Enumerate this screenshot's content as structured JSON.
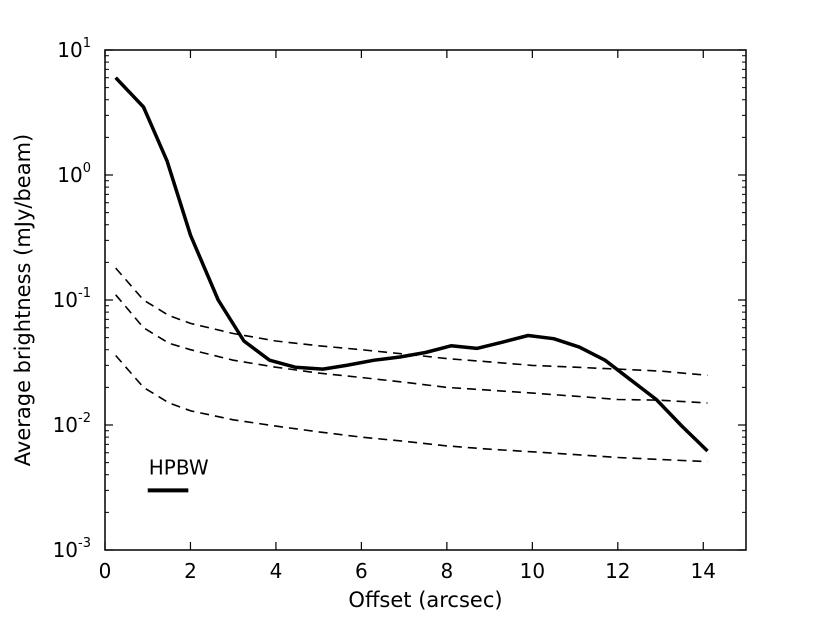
{
  "chart_data": {
    "type": "line",
    "title": "",
    "xlabel": "Offset (arcsec)",
    "ylabel": "Average brightness (mJy/beam)",
    "x_scale": "linear",
    "y_scale": "log",
    "xlim": [
      0,
      15
    ],
    "ylim": [
      0.001,
      10
    ],
    "x_ticks": [
      0,
      2,
      4,
      6,
      8,
      10,
      12,
      14
    ],
    "y_ticks": [
      {
        "value": 0.001,
        "base": "10",
        "exp": "-3"
      },
      {
        "value": 0.01,
        "base": "10",
        "exp": "-2"
      },
      {
        "value": 0.1,
        "base": "10",
        "exp": "-1"
      },
      {
        "value": 1,
        "base": "10",
        "exp": "0"
      },
      {
        "value": 10,
        "base": "10",
        "exp": "1"
      }
    ],
    "grid": false,
    "series": [
      {
        "style": "solid",
        "x": [
          0.25,
          0.9,
          1.45,
          2.0,
          2.65,
          3.25,
          3.85,
          4.45,
          5.1,
          5.65,
          6.3,
          6.9,
          7.5,
          8.1,
          8.7,
          9.3,
          9.9,
          10.5,
          11.1,
          11.7,
          12.3,
          12.9,
          13.5,
          14.1
        ],
        "y": [
          6.0,
          3.5,
          1.3,
          0.33,
          0.1,
          0.047,
          0.033,
          0.029,
          0.028,
          0.03,
          0.033,
          0.035,
          0.038,
          0.043,
          0.041,
          0.046,
          0.052,
          0.049,
          0.042,
          0.033,
          0.023,
          0.016,
          0.0098,
          0.0062
        ]
      },
      {
        "style": "dashed",
        "x": [
          0.25,
          0.9,
          1.5,
          2.0,
          3.0,
          4.0,
          5.0,
          6.0,
          7.0,
          8.0,
          9.0,
          10.0,
          11.0,
          12.0,
          13.0,
          14.1
        ],
        "y": [
          0.18,
          0.1,
          0.075,
          0.065,
          0.054,
          0.047,
          0.043,
          0.04,
          0.037,
          0.034,
          0.032,
          0.03,
          0.029,
          0.028,
          0.027,
          0.025
        ]
      },
      {
        "style": "dashed",
        "x": [
          0.25,
          0.9,
          1.5,
          2.0,
          3.0,
          4.0,
          5.0,
          6.0,
          7.0,
          8.0,
          9.0,
          10.0,
          11.0,
          12.0,
          13.0,
          14.1
        ],
        "y": [
          0.11,
          0.06,
          0.045,
          0.04,
          0.033,
          0.029,
          0.026,
          0.024,
          0.022,
          0.02,
          0.019,
          0.018,
          0.017,
          0.016,
          0.0158,
          0.015
        ]
      },
      {
        "style": "dashed",
        "x": [
          0.25,
          0.9,
          1.5,
          2.0,
          3.0,
          4.0,
          5.0,
          6.0,
          7.0,
          8.0,
          9.0,
          10.0,
          11.0,
          12.0,
          13.0,
          14.1
        ],
        "y": [
          0.036,
          0.02,
          0.015,
          0.013,
          0.011,
          0.0098,
          0.0088,
          0.008,
          0.0074,
          0.0068,
          0.0064,
          0.0061,
          0.0058,
          0.0055,
          0.0053,
          0.0051
        ]
      }
    ],
    "annotations": [
      {
        "text": "HPBW",
        "x_start": 1.0,
        "x_end": 1.95,
        "y": 0.003
      }
    ]
  }
}
